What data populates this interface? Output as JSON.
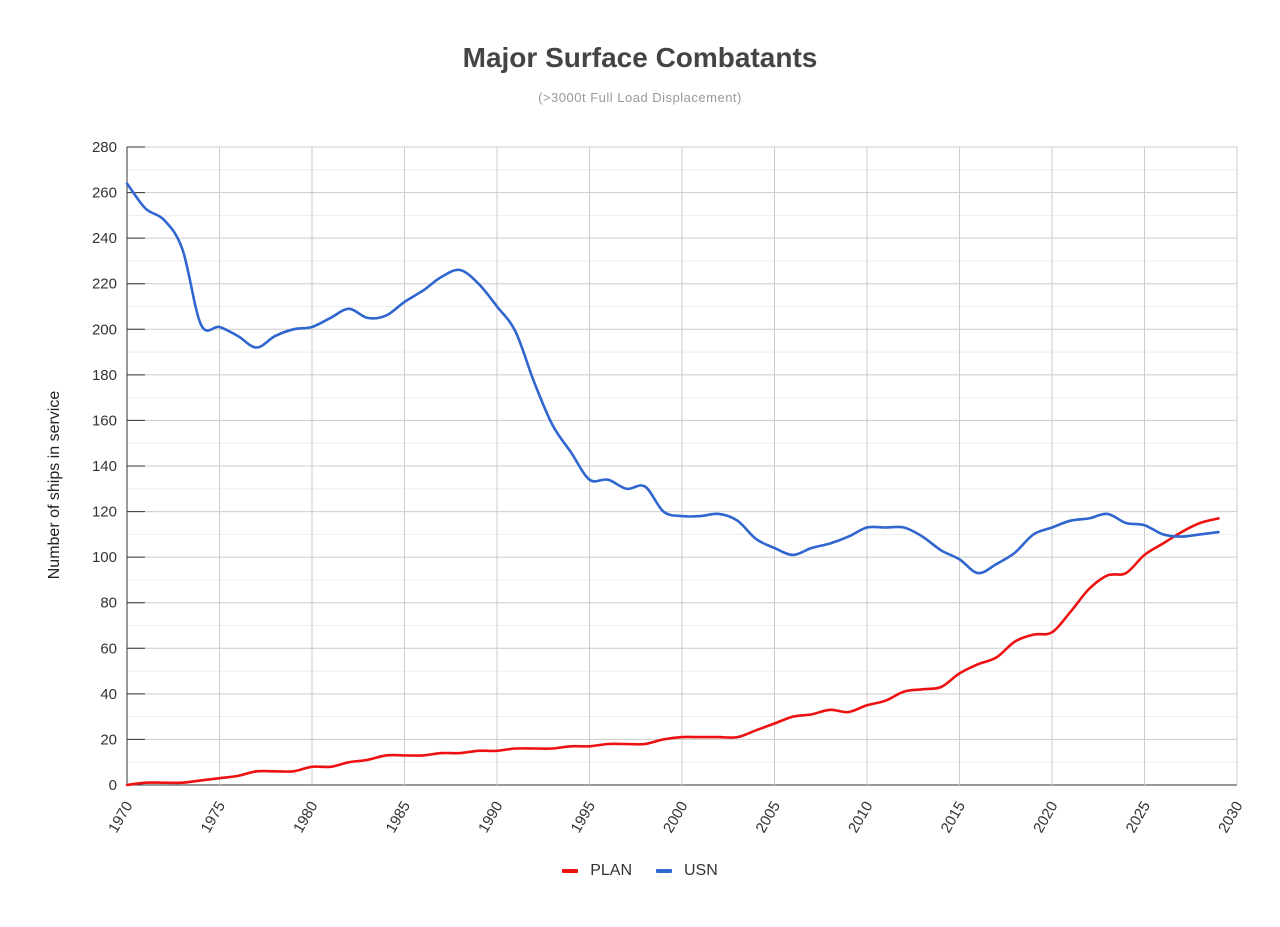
{
  "chart_data": {
    "type": "line",
    "title": "Major Surface Combatants",
    "subtitle": "(>3000t Full Load Displacement)",
    "xlabel": "",
    "ylabel": "Number of ships in service",
    "xlim": [
      1970,
      2030
    ],
    "ylim": [
      0,
      280
    ],
    "x_ticks": [
      1970,
      1975,
      1980,
      1985,
      1990,
      1995,
      2000,
      2005,
      2010,
      2015,
      2020,
      2025,
      2030
    ],
    "y_ticks": [
      0,
      20,
      40,
      60,
      80,
      100,
      120,
      140,
      160,
      180,
      200,
      220,
      240,
      260,
      280
    ],
    "grid": true,
    "legend_position": "bottom",
    "series": [
      {
        "name": "PLAN",
        "color": "#ee1111",
        "x": [
          1970,
          1971,
          1972,
          1973,
          1974,
          1975,
          1976,
          1977,
          1978,
          1979,
          1980,
          1981,
          1982,
          1983,
          1984,
          1985,
          1986,
          1987,
          1988,
          1989,
          1990,
          1991,
          1992,
          1993,
          1994,
          1995,
          1996,
          1997,
          1998,
          1999,
          2000,
          2001,
          2002,
          2003,
          2004,
          2005,
          2006,
          2007,
          2008,
          2009,
          2010,
          2011,
          2012,
          2013,
          2014,
          2015,
          2016,
          2017,
          2018,
          2019,
          2020,
          2021,
          2022,
          2023,
          2024,
          2025,
          2026,
          2027,
          2028,
          2029
        ],
        "values": [
          0,
          1,
          1,
          1,
          2,
          3,
          4,
          6,
          6,
          6,
          8,
          8,
          10,
          11,
          13,
          13,
          13,
          14,
          14,
          15,
          15,
          16,
          16,
          16,
          17,
          17,
          18,
          18,
          18,
          20,
          21,
          21,
          21,
          21,
          24,
          27,
          30,
          31,
          33,
          32,
          35,
          37,
          41,
          42,
          43,
          49,
          53,
          56,
          63,
          66,
          67,
          76,
          86,
          92,
          93,
          101,
          106,
          111,
          115,
          117
        ]
      },
      {
        "name": "USN",
        "color": "#2f66cf",
        "x": [
          1970,
          1971,
          1972,
          1973,
          1974,
          1975,
          1976,
          1977,
          1978,
          1979,
          1980,
          1981,
          1982,
          1983,
          1984,
          1985,
          1986,
          1987,
          1988,
          1989,
          1990,
          1991,
          1992,
          1993,
          1994,
          1995,
          1996,
          1997,
          1998,
          1999,
          2000,
          2001,
          2002,
          2003,
          2004,
          2005,
          2006,
          2007,
          2008,
          2009,
          2010,
          2011,
          2012,
          2013,
          2014,
          2015,
          2016,
          2017,
          2018,
          2019,
          2020,
          2021,
          2022,
          2023,
          2024,
          2025,
          2026,
          2027,
          2028,
          2029
        ],
        "values": [
          264,
          253,
          248,
          235,
          202,
          201,
          197,
          192,
          197,
          200,
          201,
          205,
          209,
          205,
          206,
          212,
          217,
          223,
          226,
          220,
          210,
          199,
          177,
          158,
          146,
          134,
          134,
          130,
          131,
          120,
          118,
          118,
          119,
          116,
          108,
          104,
          101,
          104,
          106,
          109,
          113,
          113,
          113,
          109,
          103,
          99,
          93,
          97,
          102,
          110,
          113,
          116,
          117,
          119,
          115,
          114,
          110,
          109,
          110,
          111
        ]
      }
    ]
  }
}
